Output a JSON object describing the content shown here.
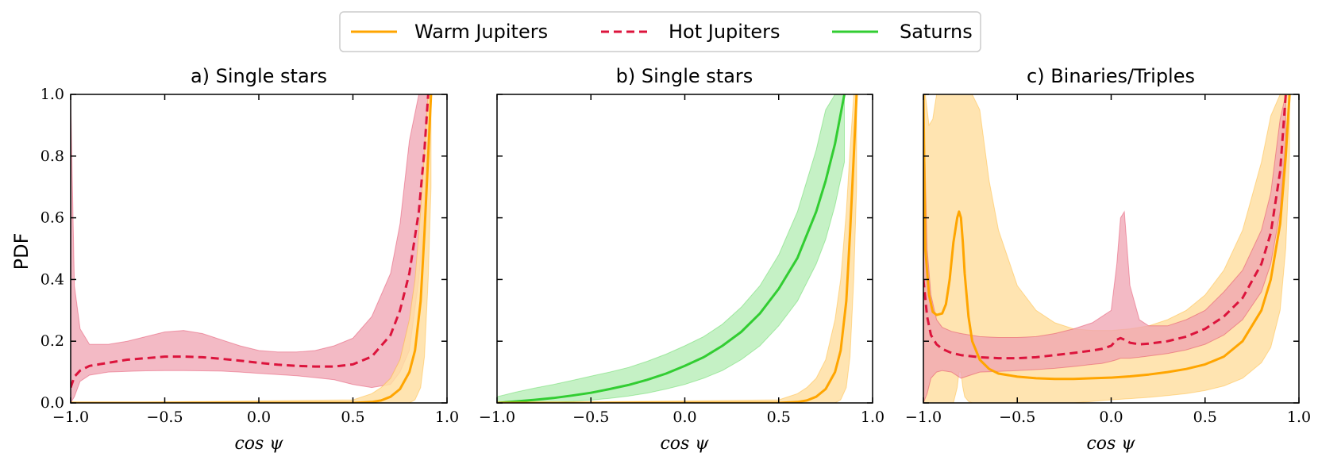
{
  "legend": [
    {
      "label": "Warm Jupiters",
      "color": "#FFA500",
      "dash": "solid"
    },
    {
      "label": "Hot Jupiters",
      "color": "#DC143C",
      "dash": "dashed"
    },
    {
      "label": "Saturns",
      "color": "#32CD32",
      "dash": "solid"
    }
  ],
  "colors": {
    "warm_fill": "#FFDFA3",
    "hot_fill": "#EFA3B1",
    "saturn_fill": "#BFEFBF"
  },
  "chart_data": [
    {
      "type": "line",
      "title": "a) Single stars",
      "xlabel": "cos ψ",
      "ylabel": "PDF",
      "xlim": [
        -1.0,
        1.0
      ],
      "ylim": [
        0.0,
        1.0
      ],
      "xticks": [
        "−1.0",
        "−0.5",
        "0.0",
        "0.5",
        "1.0"
      ],
      "yticks": [
        "0.0",
        "0.2",
        "0.4",
        "0.6",
        "0.8",
        "1.0"
      ],
      "series": [
        {
          "name": "Hot Jupiters",
          "x": [
            -1.0,
            -0.98,
            -0.95,
            -0.9,
            -0.8,
            -0.7,
            -0.6,
            -0.5,
            -0.4,
            -0.3,
            -0.2,
            -0.1,
            0.0,
            0.1,
            0.2,
            0.3,
            0.4,
            0.5,
            0.6,
            0.7,
            0.75,
            0.8,
            0.85,
            0.88,
            0.9
          ],
          "y": [
            0.05,
            0.085,
            0.105,
            0.12,
            0.13,
            0.14,
            0.145,
            0.15,
            0.15,
            0.148,
            0.143,
            0.137,
            0.13,
            0.124,
            0.12,
            0.118,
            0.118,
            0.125,
            0.15,
            0.22,
            0.3,
            0.42,
            0.62,
            0.82,
            1.0
          ],
          "lower": [
            0.0,
            0.02,
            0.07,
            0.09,
            0.1,
            0.102,
            0.104,
            0.105,
            0.105,
            0.104,
            0.103,
            0.1,
            0.096,
            0.092,
            0.088,
            0.082,
            0.075,
            0.06,
            0.05,
            0.06,
            0.1,
            0.17,
            0.4,
            0.62,
            0.9
          ],
          "upper": [
            1.0,
            0.38,
            0.24,
            0.19,
            0.19,
            0.2,
            0.215,
            0.23,
            0.235,
            0.225,
            0.205,
            0.185,
            0.17,
            0.165,
            0.165,
            0.17,
            0.185,
            0.21,
            0.28,
            0.42,
            0.58,
            0.85,
            1.0,
            1.0,
            1.0
          ]
        },
        {
          "name": "Warm Jupiters",
          "x": [
            -1.0,
            0.5,
            0.6,
            0.65,
            0.7,
            0.75,
            0.8,
            0.83,
            0.86,
            0.88,
            0.9,
            0.915
          ],
          "y": [
            0.0,
            0.0,
            0.003,
            0.008,
            0.02,
            0.045,
            0.1,
            0.17,
            0.33,
            0.55,
            0.8,
            1.0
          ],
          "lower": [
            0.0,
            0.0,
            0.0,
            0.0,
            0.0,
            0.0,
            0.0,
            0.01,
            0.05,
            0.15,
            0.4,
            0.7
          ],
          "upper": [
            0.0,
            0.01,
            0.03,
            0.05,
            0.08,
            0.14,
            0.27,
            0.4,
            0.62,
            0.82,
            1.0,
            1.0
          ]
        }
      ]
    },
    {
      "type": "line",
      "title": "b) Single stars",
      "xlabel": "cos ψ",
      "ylabel": "",
      "xlim": [
        -1.0,
        1.0
      ],
      "ylim": [
        0.0,
        1.0
      ],
      "xticks": [
        "−1.0",
        "−0.5",
        "0.0",
        "0.5",
        "1.0"
      ],
      "yticks": [
        "",
        "",
        "",
        "",
        "",
        ""
      ],
      "series": [
        {
          "name": "Saturns",
          "x": [
            -1.0,
            -0.9,
            -0.8,
            -0.7,
            -0.6,
            -0.5,
            -0.4,
            -0.3,
            -0.2,
            -0.1,
            0.0,
            0.1,
            0.2,
            0.3,
            0.4,
            0.5,
            0.6,
            0.7,
            0.75,
            0.8,
            0.85
          ],
          "y": [
            0.0,
            0.005,
            0.01,
            0.016,
            0.024,
            0.033,
            0.045,
            0.058,
            0.075,
            0.095,
            0.12,
            0.148,
            0.185,
            0.23,
            0.29,
            0.37,
            0.47,
            0.62,
            0.72,
            0.84,
            1.0
          ],
          "lower": [
            0.0,
            0.0,
            0.0,
            0.002,
            0.005,
            0.009,
            0.015,
            0.022,
            0.032,
            0.045,
            0.06,
            0.08,
            0.105,
            0.14,
            0.185,
            0.25,
            0.33,
            0.45,
            0.53,
            0.64,
            0.78
          ],
          "upper": [
            0.02,
            0.035,
            0.048,
            0.06,
            0.073,
            0.087,
            0.1,
            0.115,
            0.135,
            0.158,
            0.185,
            0.215,
            0.255,
            0.31,
            0.38,
            0.48,
            0.62,
            0.82,
            0.95,
            1.0,
            1.0
          ]
        },
        {
          "name": "Warm Jupiters",
          "x": [
            -1.0,
            0.5,
            0.6,
            0.65,
            0.7,
            0.75,
            0.8,
            0.83,
            0.86,
            0.88,
            0.9,
            0.915
          ],
          "y": [
            0.0,
            0.0,
            0.003,
            0.008,
            0.02,
            0.045,
            0.1,
            0.17,
            0.33,
            0.55,
            0.8,
            1.0
          ],
          "lower": [
            0.0,
            0.0,
            0.0,
            0.0,
            0.0,
            0.0,
            0.0,
            0.01,
            0.05,
            0.15,
            0.4,
            0.7
          ],
          "upper": [
            0.0,
            0.01,
            0.03,
            0.05,
            0.08,
            0.14,
            0.27,
            0.4,
            0.62,
            0.82,
            1.0,
            1.0
          ]
        }
      ]
    },
    {
      "type": "line",
      "title": "c) Binaries/Triples",
      "xlabel": "cos ψ",
      "ylabel": "",
      "xlim": [
        -1.0,
        1.0
      ],
      "ylim": [
        0.0,
        1.0
      ],
      "xticks": [
        "−1.0",
        "−0.5",
        "0.0",
        "0.5",
        "1.0"
      ],
      "yticks": [
        "",
        "",
        "",
        "",
        "",
        ""
      ],
      "series": [
        {
          "name": "Warm Jupiters",
          "x": [
            -1.0,
            -0.99,
            -0.97,
            -0.95,
            -0.93,
            -0.9,
            -0.88,
            -0.86,
            -0.84,
            -0.82,
            -0.81,
            -0.8,
            -0.79,
            -0.78,
            -0.76,
            -0.74,
            -0.7,
            -0.65,
            -0.6,
            -0.5,
            -0.4,
            -0.3,
            -0.2,
            -0.1,
            0.0,
            0.1,
            0.2,
            0.3,
            0.4,
            0.5,
            0.6,
            0.7,
            0.8,
            0.85,
            0.9,
            0.93,
            0.95
          ],
          "y": [
            1.0,
            0.5,
            0.35,
            0.295,
            0.285,
            0.29,
            0.32,
            0.4,
            0.52,
            0.6,
            0.62,
            0.6,
            0.52,
            0.42,
            0.28,
            0.2,
            0.14,
            0.11,
            0.095,
            0.085,
            0.08,
            0.078,
            0.078,
            0.08,
            0.082,
            0.086,
            0.092,
            0.1,
            0.11,
            0.125,
            0.15,
            0.2,
            0.3,
            0.4,
            0.58,
            0.8,
            1.0
          ],
          "lower": [
            0.0,
            0.0,
            0.0,
            0.0,
            0.0,
            0.0,
            0.0,
            0.0,
            0.0,
            0.05,
            0.1,
            0.1,
            0.05,
            0.02,
            0.005,
            0.0,
            0.0,
            0.0,
            0.0,
            0.0,
            0.0,
            0.0,
            0.0,
            0.005,
            0.01,
            0.014,
            0.018,
            0.024,
            0.03,
            0.04,
            0.055,
            0.08,
            0.13,
            0.18,
            0.3,
            0.5,
            0.8
          ],
          "upper": [
            1.0,
            1.0,
            0.9,
            0.92,
            1.0,
            1.0,
            1.0,
            1.0,
            1.0,
            1.0,
            1.0,
            1.0,
            1.0,
            1.0,
            1.0,
            1.0,
            0.95,
            0.72,
            0.56,
            0.38,
            0.3,
            0.26,
            0.24,
            0.235,
            0.235,
            0.24,
            0.25,
            0.27,
            0.3,
            0.35,
            0.43,
            0.56,
            0.78,
            0.93,
            1.0,
            1.0,
            1.0
          ]
        },
        {
          "name": "Hot Jupiters",
          "x": [
            -1.0,
            -0.98,
            -0.96,
            -0.93,
            -0.9,
            -0.85,
            -0.8,
            -0.7,
            -0.6,
            -0.5,
            -0.4,
            -0.3,
            -0.2,
            -0.1,
            -0.05,
            0.0,
            0.03,
            0.05,
            0.07,
            0.1,
            0.15,
            0.2,
            0.3,
            0.4,
            0.5,
            0.6,
            0.7,
            0.8,
            0.85,
            0.9,
            0.93
          ],
          "y": [
            0.4,
            0.28,
            0.22,
            0.19,
            0.175,
            0.162,
            0.155,
            0.148,
            0.145,
            0.145,
            0.148,
            0.155,
            0.162,
            0.17,
            0.175,
            0.185,
            0.205,
            0.21,
            0.205,
            0.195,
            0.19,
            0.192,
            0.2,
            0.215,
            0.24,
            0.28,
            0.34,
            0.45,
            0.55,
            0.75,
            1.0
          ],
          "lower": [
            0.0,
            0.03,
            0.08,
            0.1,
            0.105,
            0.1,
            0.08,
            0.1,
            0.102,
            0.105,
            0.108,
            0.112,
            0.118,
            0.125,
            0.128,
            0.135,
            0.14,
            0.145,
            0.145,
            0.145,
            0.148,
            0.152,
            0.16,
            0.172,
            0.19,
            0.22,
            0.27,
            0.36,
            0.45,
            0.62,
            0.85
          ],
          "upper": [
            1.0,
            0.5,
            0.35,
            0.27,
            0.245,
            0.232,
            0.225,
            0.215,
            0.212,
            0.212,
            0.215,
            0.225,
            0.24,
            0.26,
            0.28,
            0.3,
            0.45,
            0.6,
            0.62,
            0.38,
            0.27,
            0.25,
            0.25,
            0.27,
            0.3,
            0.36,
            0.43,
            0.56,
            0.68,
            0.92,
            1.0
          ]
        }
      ]
    }
  ]
}
